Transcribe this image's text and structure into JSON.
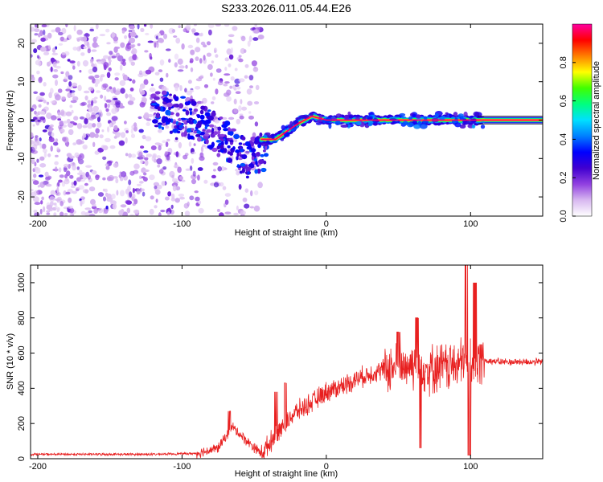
{
  "figure_title": "S233.2026.011.05.44.E26",
  "chart_data": [
    {
      "type": "heatmap",
      "name": "spectrogram",
      "xlabel": "Height of straight line (km)",
      "ylabel": "Frequency (Hz)",
      "xlim": [
        -205,
        150
      ],
      "ylim": [
        -25,
        25
      ],
      "xticks": [
        -200,
        -100,
        0,
        100
      ],
      "yticks": [
        -20,
        -10,
        0,
        10,
        20
      ],
      "colorbar": {
        "label": "Normalized spectral amplitude",
        "range": [
          0,
          1
        ],
        "ticks": [
          0.0,
          0.2,
          0.4,
          0.6,
          0.8
        ],
        "colormap": [
          "#ffffff",
          "#d8b8f0",
          "#9040e0",
          "#4000d0",
          "#0000ff",
          "#0080ff",
          "#00e0ff",
          "#00ff80",
          "#40ff00",
          "#ffff00",
          "#ff8000",
          "#ff0000",
          "#ff00a0"
        ]
      },
      "noise_region": {
        "x": [
          -205,
          -45
        ],
        "amplitude": [
          0.05,
          0.3
        ]
      },
      "carrier_track": [
        {
          "x": -60,
          "y": -10,
          "amplitude": 0.3
        },
        {
          "x": -45,
          "y": -5,
          "amplitude": 0.7
        },
        {
          "x": -35,
          "y": -5,
          "amplitude": 0.85
        },
        {
          "x": -20,
          "y": -1,
          "amplitude": 0.85
        },
        {
          "x": -10,
          "y": 1,
          "amplitude": 0.9
        },
        {
          "x": 0,
          "y": 0,
          "amplitude": 0.95
        },
        {
          "x": 50,
          "y": 0,
          "amplitude": 1.0
        },
        {
          "x": 100,
          "y": 0,
          "amplitude": 1.0
        },
        {
          "x": 150,
          "y": 0,
          "amplitude": 1.0
        }
      ]
    },
    {
      "type": "line",
      "name": "snr",
      "xlabel": "Height of straight line (km)",
      "ylabel": "SNR (10 * v/v)",
      "xlim": [
        -205,
        150
      ],
      "ylim": [
        0,
        1100
      ],
      "xticks": [
        -200,
        -100,
        0,
        100
      ],
      "yticks": [
        0,
        200,
        400,
        600,
        800,
        1000
      ],
      "color": "#e82020",
      "envelope": {
        "x": [
          -205,
          -120,
          -90,
          -75,
          -65,
          -55,
          -45,
          -40,
          -30,
          -20,
          -10,
          0,
          10,
          20,
          30,
          40,
          50,
          60,
          70,
          80,
          90,
          100,
          110,
          120,
          150
        ],
        "y": [
          25,
          25,
          30,
          60,
          180,
          100,
          30,
          80,
          200,
          270,
          320,
          380,
          410,
          450,
          480,
          510,
          520,
          540,
          510,
          520,
          530,
          560,
          560,
          550,
          550
        ]
      },
      "spikes": [
        {
          "x": -67,
          "y": 270
        },
        {
          "x": -35,
          "y": 380
        },
        {
          "x": -28,
          "y": 430
        },
        {
          "x": 50,
          "y": 720
        },
        {
          "x": 63,
          "y": 800
        },
        {
          "x": 65,
          "y": 60
        },
        {
          "x": 97,
          "y": 1100
        },
        {
          "x": 99,
          "y": 20
        },
        {
          "x": 103,
          "y": 1000
        },
        {
          "x": 107,
          "y": 650
        }
      ]
    }
  ]
}
